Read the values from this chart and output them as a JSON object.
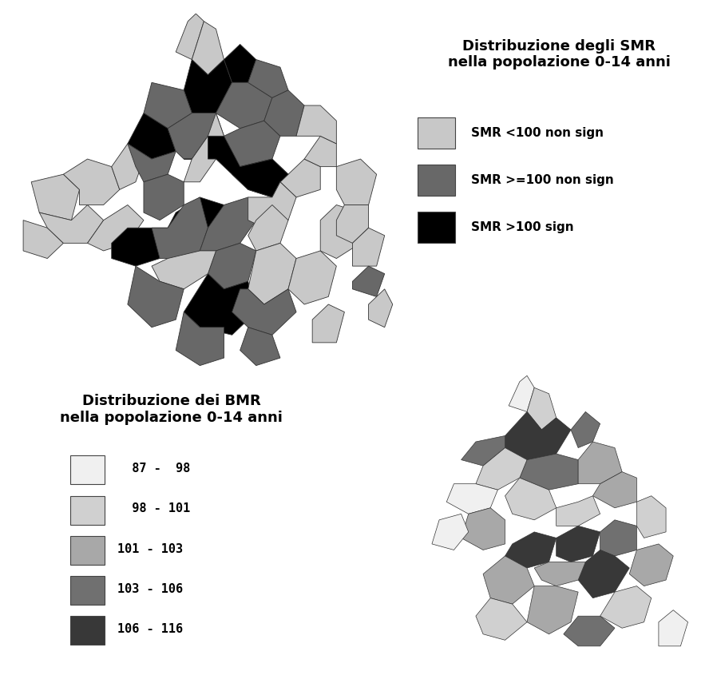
{
  "title_smr": "Distribuzione degli SMR\nnella popolazione 0-14 anni",
  "title_bmr": "Distribuzione dei BMR\nnella popolazione 0-14 anni",
  "smr_legend": [
    {
      "label": "SMR <100 non sign",
      "color": "#C8C8C8"
    },
    {
      "label": "SMR >=100 non sign",
      "color": "#686868"
    },
    {
      "label": "SMR >100 sign",
      "color": "#000000"
    }
  ],
  "bmr_legend": [
    {
      "label": "  87 -  98",
      "color": "#F0F0F0"
    },
    {
      "label": "  98 - 101",
      "color": "#D0D0D0"
    },
    {
      "label": "101 - 103",
      "color": "#A8A8A8"
    },
    {
      "label": "103 - 106",
      "color": "#707070"
    },
    {
      "label": "106 - 116",
      "color": "#383838"
    }
  ],
  "background_color": "#FFFFFF",
  "title_fontsize": 13,
  "legend_fontsize": 11
}
